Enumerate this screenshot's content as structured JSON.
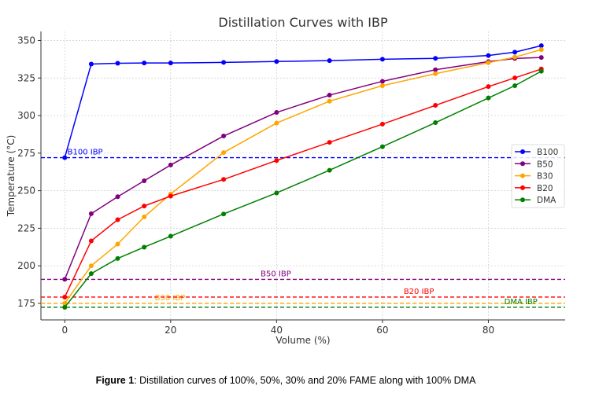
{
  "chart_data": {
    "type": "line",
    "title": "Distillation Curves with IBP",
    "xlabel": "Volume (%)",
    "ylabel": "Temperature (°C)",
    "xlim": [
      -4.5,
      94.5
    ],
    "ylim": [
      164,
      356
    ],
    "xticks": [
      0,
      20,
      40,
      60,
      80
    ],
    "yticks": [
      175,
      200,
      225,
      250,
      275,
      300,
      325,
      350
    ],
    "grid": true,
    "legend_position": "center-right",
    "x": [
      0,
      5,
      10,
      15,
      20,
      30,
      40,
      50,
      60,
      70,
      80,
      85,
      90
    ],
    "series": [
      {
        "name": "B100",
        "color": "#0000ff",
        "values": [
          272,
          334.3,
          334.8,
          335,
          335,
          335.4,
          336,
          336.6,
          337.5,
          338.1,
          340,
          342.2,
          346.5
        ]
      },
      {
        "name": "B50",
        "color": "#800080",
        "values": [
          191,
          234.7,
          246,
          256.6,
          267.1,
          286.4,
          302.1,
          313.6,
          322.8,
          330.5,
          335.9,
          338,
          338.7
        ]
      },
      {
        "name": "B30",
        "color": "#ffa500",
        "values": [
          175,
          200,
          214.5,
          232.6,
          247.8,
          275.4,
          295,
          309.6,
          319.9,
          327.9,
          335.2,
          338.9,
          343.9
        ]
      },
      {
        "name": "B20",
        "color": "#ff0000",
        "values": [
          179.2,
          216.6,
          230.7,
          239.8,
          246.4,
          257.5,
          270.1,
          282.2,
          294.3,
          306.8,
          319.3,
          325.1,
          331
        ]
      },
      {
        "name": "DMA",
        "color": "#008000",
        "values": [
          172.4,
          194.8,
          204.9,
          212.4,
          219.7,
          234.5,
          248.5,
          263.6,
          279.3,
          295.3,
          311.7,
          319.9,
          329.5
        ]
      }
    ],
    "ibp_lines": [
      {
        "label": "B100 IBP",
        "value": 272,
        "color": "#0000ff",
        "label_x": 0.5
      },
      {
        "label": "B50 IBP",
        "value": 191,
        "color": "#800080",
        "label_x": 37
      },
      {
        "label": "B30 IBP",
        "value": 175,
        "color": "#ffa500",
        "label_x": 17
      },
      {
        "label": "B20 IBP",
        "value": 179.2,
        "color": "#ff0000",
        "label_x": 64
      },
      {
        "label": "DMA IBP",
        "value": 172.4,
        "color": "#008000",
        "label_x": 83
      }
    ]
  },
  "caption": {
    "label": "Figure 1",
    "text": ": Distillation curves of 100%, 50%, 30% and 20% FAME along with 100% DMA"
  }
}
